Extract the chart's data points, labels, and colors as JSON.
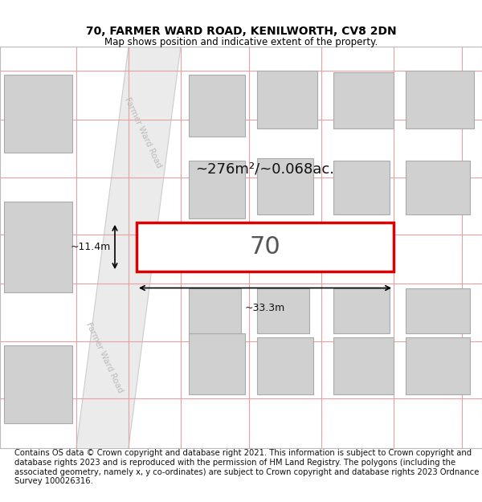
{
  "title_line1": "70, FARMER WARD ROAD, KENILWORTH, CV8 2DN",
  "title_line2": "Map shows position and indicative extent of the property.",
  "footnote": "Contains OS data © Crown copyright and database right 2021. This information is subject to Crown copyright and database rights 2023 and is reproduced with the permission of HM Land Registry. The polygons (including the associated geometry, namely x, y co-ordinates) are subject to Crown copyright and database rights 2023 Ordnance Survey 100026316.",
  "map_bg": "#f0f0f0",
  "road_fill": "#e8e8e8",
  "road_edge": "#cccccc",
  "building_fill": "#d0d0d0",
  "building_edge": "#aaaaaa",
  "grid_color": "#e8a0a0",
  "highlight_color": "#dd0000",
  "highlight_fill": "#ffffff",
  "area_text": "~276m²/~0.068ac.",
  "dim_width": "~33.3m",
  "dim_height": "~11.4m",
  "number_label": "70",
  "road_label": "Farmer Ward Road",
  "title_fontsize": 10,
  "subtitle_fontsize": 8.5,
  "footnote_fontsize": 7.2,
  "road_label_color": "#bbbbbb",
  "road_label_size": 7.5
}
